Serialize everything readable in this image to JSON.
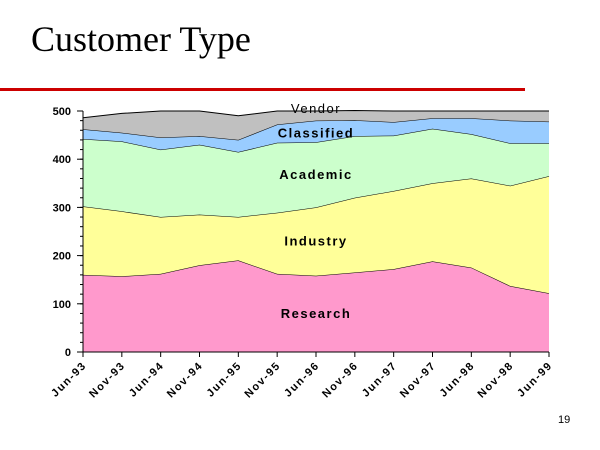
{
  "slide": {
    "title": "Customer Type",
    "page_number": "19",
    "title_rule_color": "#cc0000"
  },
  "chart_data": {
    "type": "area",
    "stacked": true,
    "x": [
      "Jun-93",
      "Nov-93",
      "Jun-94",
      "Nov-94",
      "Jun-95",
      "Nov-95",
      "Jun-96",
      "Nov-96",
      "Jun-97",
      "Nov-97",
      "Jun-98",
      "Nov-98",
      "Jun-99"
    ],
    "ylim": [
      0,
      500
    ],
    "yticks": [
      0,
      100,
      200,
      300,
      400,
      500
    ],
    "grid": false,
    "legend": "none",
    "series": [
      {
        "name": "Research",
        "color": "#ff99cc",
        "values": [
          160,
          157,
          162,
          180,
          190,
          162,
          158,
          165,
          172,
          188,
          175,
          137,
          122
        ]
      },
      {
        "name": "Industry",
        "color": "#ffff99",
        "values": [
          142,
          135,
          118,
          105,
          90,
          127,
          142,
          155,
          162,
          162,
          185,
          208,
          243
        ]
      },
      {
        "name": "Academic",
        "color": "#ccffcc",
        "values": [
          140,
          145,
          140,
          145,
          135,
          145,
          135,
          128,
          115,
          113,
          92,
          88,
          68
        ]
      },
      {
        "name": "Classified",
        "color": "#99ccff",
        "values": [
          20,
          18,
          25,
          18,
          25,
          38,
          45,
          33,
          28,
          22,
          33,
          47,
          45
        ]
      },
      {
        "name": "Vendor",
        "color": "#c0c0c0",
        "values": [
          24,
          40,
          55,
          52,
          50,
          28,
          20,
          20,
          23,
          15,
          15,
          20,
          22
        ]
      }
    ]
  }
}
